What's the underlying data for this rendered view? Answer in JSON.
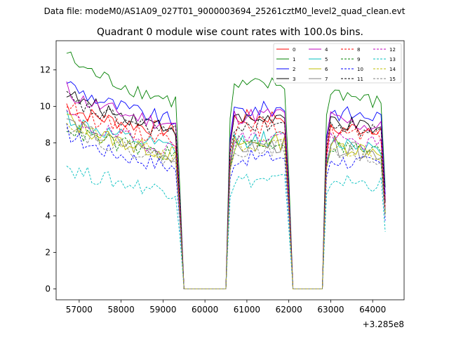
{
  "chart_data": {
    "type": "line",
    "suptitle": "Data file: modeM0/AS1A09_027T01_9000003694_25261cztM0_level2_quad_clean.evt",
    "title": "Quadrant 0 module wise count rates with 100.0s bins.",
    "xlabel": "",
    "ylabel": "",
    "x_offset_label": "+3.285e8",
    "xlim": [
      56450,
      64750
    ],
    "ylim": [
      -0.6,
      13.6
    ],
    "x_ticks": [
      57000,
      58000,
      59000,
      60000,
      61000,
      62000,
      63000,
      64000
    ],
    "y_ticks": [
      0,
      2,
      4,
      6,
      8,
      10,
      12
    ],
    "legend_position": "top-right",
    "segments": [
      [
        56700,
        59400
      ],
      [
        60600,
        62000
      ],
      [
        62900,
        64300
      ]
    ],
    "gaps": [
      [
        59500,
        60500
      ],
      [
        62100,
        62800
      ]
    ],
    "series": [
      {
        "name": "0",
        "color": "#ff0000",
        "dash": false,
        "levels": [
          10.1,
          8.6,
          9.3,
          8.6,
          8.9
        ]
      },
      {
        "name": "1",
        "color": "#008000",
        "dash": false,
        "levels": [
          13.0,
          10.2,
          11.0,
          11.2,
          10.1
        ]
      },
      {
        "name": "2",
        "color": "#0000ff",
        "dash": false,
        "levels": [
          11.5,
          9.1,
          9.7,
          9.8,
          9.4
        ]
      },
      {
        "name": "3",
        "color": "#000000",
        "dash": false,
        "levels": [
          10.9,
          8.8,
          9.2,
          9.5,
          8.6
        ]
      },
      {
        "name": "4",
        "color": "#bf00bf",
        "dash": false,
        "levels": [
          11.0,
          8.9,
          9.4,
          9.5,
          8.8
        ]
      },
      {
        "name": "5",
        "color": "#00bfbf",
        "dash": false,
        "levels": [
          9.6,
          7.6,
          8.1,
          8.2,
          7.8
        ]
      },
      {
        "name": "6",
        "color": "#bfbf00",
        "dash": false,
        "levels": [
          9.5,
          7.3,
          7.9,
          8.0,
          7.6
        ]
      },
      {
        "name": "7",
        "color": "#808080",
        "dash": false,
        "levels": [
          9.4,
          7.2,
          7.7,
          7.9,
          7.4
        ]
      },
      {
        "name": "8",
        "color": "#ff0000",
        "dash": true,
        "levels": [
          10.2,
          8.1,
          8.7,
          8.8,
          8.2
        ]
      },
      {
        "name": "9",
        "color": "#008000",
        "dash": true,
        "levels": [
          9.0,
          7.3,
          7.9,
          8.0,
          7.5
        ]
      },
      {
        "name": "10",
        "color": "#0000ff",
        "dash": true,
        "levels": [
          8.7,
          6.6,
          7.1,
          7.2,
          6.8
        ]
      },
      {
        "name": "11",
        "color": "#000000",
        "dash": true,
        "levels": [
          10.6,
          8.5,
          8.9,
          9.1,
          8.6
        ]
      },
      {
        "name": "12",
        "color": "#bf00bf",
        "dash": true,
        "levels": [
          9.7,
          7.6,
          8.2,
          8.3,
          7.9
        ]
      },
      {
        "name": "13",
        "color": "#00bfbf",
        "dash": true,
        "levels": [
          6.8,
          5.3,
          5.9,
          6.1,
          5.7
        ]
      },
      {
        "name": "14",
        "color": "#bfbf00",
        "dash": true,
        "levels": [
          9.3,
          7.2,
          7.7,
          7.8,
          7.4
        ]
      },
      {
        "name": "15",
        "color": "#808080",
        "dash": true,
        "levels": [
          9.2,
          7.0,
          7.6,
          7.7,
          7.2
        ]
      }
    ]
  }
}
